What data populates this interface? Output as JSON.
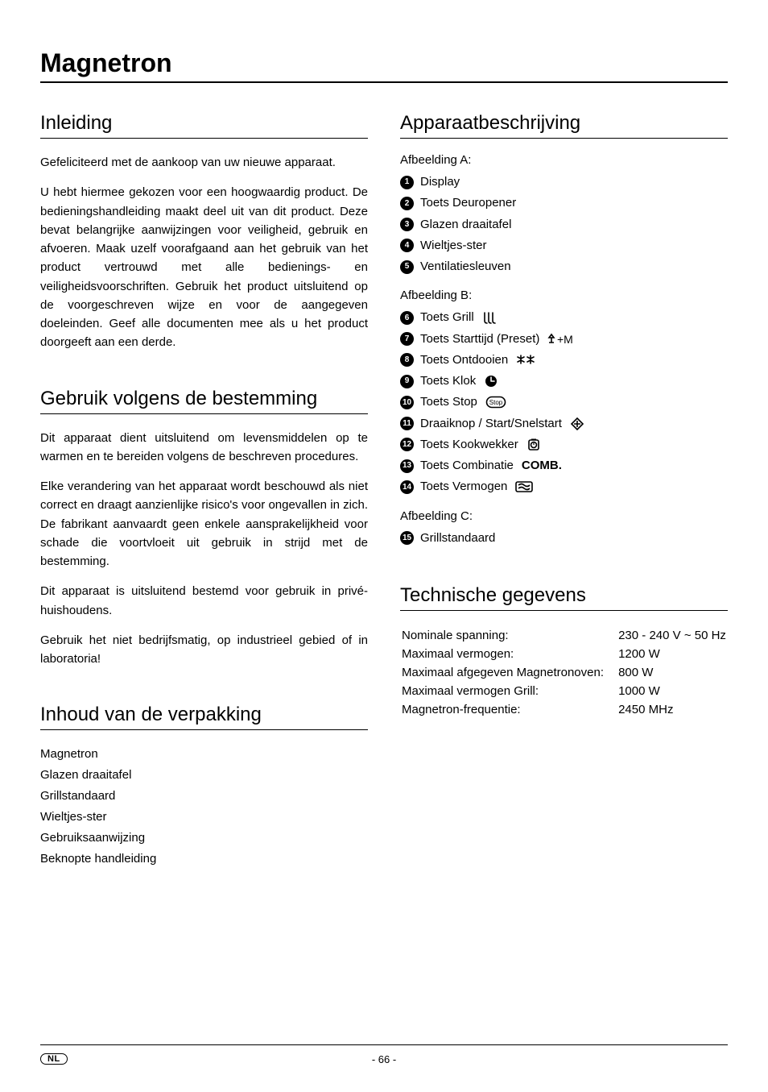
{
  "page": {
    "title": "Magnetron",
    "lang_badge": "NL",
    "page_number": "- 66 -"
  },
  "left": {
    "inleiding": {
      "heading": "Inleiding",
      "p1": "Gefeliciteerd met de aankoop van uw nieuwe apparaat.",
      "p2": "U hebt hiermee gekozen voor een hoogwaardig product. De bedieningshandleiding maakt deel uit van dit product. Deze bevat belangrijke aanwijzingen voor veiligheid, gebruik en afvoeren. Maak uzelf voorafgaand aan het gebruik van het product vertrouwd met alle bedienings- en veiligheidsvoorschriften. Gebruik het product uitsluitend op de voorgeschreven wijze en voor de aangegeven doeleinden. Geef alle documenten mee als u het product doorgeeft aan een derde."
    },
    "gebruik": {
      "heading": "Gebruik volgens de bestemming",
      "p1": "Dit apparaat dient uitsluitend om levensmiddelen op te warmen en te bereiden volgens de beschreven procedures.",
      "p2": "Elke verandering van het apparaat wordt beschouwd als niet correct en draagt aanzienlijke risico's voor ongevallen in zich. De fabrikant aanvaardt geen enkele aansprakelijkheid voor schade die voortvloeit uit gebruik in strijd met de bestemming.",
      "p3": "Dit apparaat is uitsluitend bestemd voor gebruik in privé-huishoudens.",
      "p4": "Gebruik het niet bedrijfsmatig, op industrieel gebied of in laboratoria!"
    },
    "inhoud": {
      "heading": "Inhoud van de verpakking",
      "items": [
        "Magnetron",
        "Glazen draaitafel",
        "Grillstandaard",
        "Wieltjes-ster",
        "Gebruiksaanwijzing",
        "Beknopte handleiding"
      ]
    }
  },
  "right": {
    "apparaat": {
      "heading": "Apparaatbeschrijving",
      "groupA": {
        "title": "Afbeelding A:",
        "items": [
          {
            "n": "1",
            "label": "Display"
          },
          {
            "n": "2",
            "label": "Toets Deuropener"
          },
          {
            "n": "3",
            "label": "Glazen draaitafel"
          },
          {
            "n": "4",
            "label": "Wieltjes-ster"
          },
          {
            "n": "5",
            "label": "Ventilatiesleuven"
          }
        ]
      },
      "groupB": {
        "title": "Afbeelding B:",
        "items": [
          {
            "n": "6",
            "label": "Toets Grill",
            "icon": "grill"
          },
          {
            "n": "7",
            "label": "Toets Starttijd (Preset)",
            "icon": "preset"
          },
          {
            "n": "8",
            "label": "Toets Ontdooien",
            "icon": "defrost"
          },
          {
            "n": "9",
            "label": "Toets Klok",
            "icon": "clock"
          },
          {
            "n": "10",
            "label": "Toets Stop",
            "icon": "stop"
          },
          {
            "n": "11",
            "label": "Draaiknop / Start/Snelstart",
            "icon": "dial"
          },
          {
            "n": "12",
            "label": "Toets Kookwekker",
            "icon": "timer"
          },
          {
            "n": "13",
            "label": "Toets Combinatie",
            "icon": "comb"
          },
          {
            "n": "14",
            "label": "Toets Vermogen",
            "icon": "power"
          }
        ]
      },
      "groupC": {
        "title": "Afbeelding C:",
        "items": [
          {
            "n": "15",
            "label": "Grillstandaard"
          }
        ]
      }
    },
    "tech": {
      "heading": "Technische gegevens",
      "rows": [
        {
          "label": "Nominale spanning:",
          "value": "230 - 240 V ~ 50 Hz"
        },
        {
          "label": "Maximaal vermogen:",
          "value": "1200 W"
        },
        {
          "label": "Maximaal afgegeven Magnetronoven:",
          "value": "800 W"
        },
        {
          "label": "Maximaal vermogen Grill:",
          "value": "1000 W"
        },
        {
          "label": "Magnetron-frequentie:",
          "value": "2450 MHz"
        }
      ]
    }
  },
  "icons": {
    "comb_text": "COMB."
  }
}
